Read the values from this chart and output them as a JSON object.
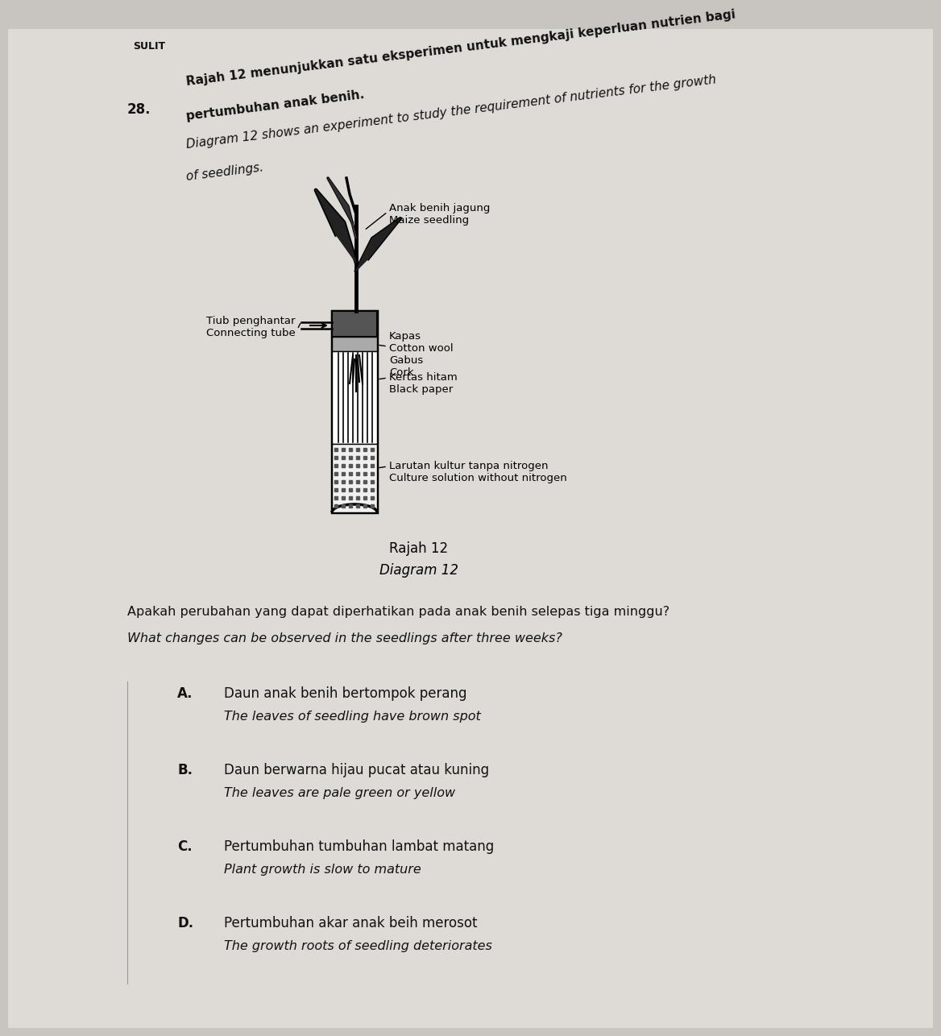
{
  "bg_color": "#c8c4c0",
  "page_bg": "#e8e4e0",
  "header_text": "SULIT",
  "question_number": "28.",
  "malay_q1": "Rajah 12 menunjukkan satu eksperimen untuk mengkaji keperluan nutrien bagi",
  "malay_q2": "pertumbuhan anak benih.",
  "english_q1": "Diagram 12 shows an experiment to study the requirement of nutrients for the growth",
  "english_q2": "of seedlings.",
  "diagram_label_malay": "Rajah 12",
  "diagram_label_english": "Diagram 12",
  "question_malay": "Apakah perubahan yang dapat diperhatikan pada anak benih selepas tiga minggu?",
  "question_english": "What changes can be observed in the seedlings after three weeks?",
  "label_connecting_tube": "Tiub penghantar\nConnecting tube",
  "label_seedling": "Anak benih jagung\nMaize seedling",
  "label_cotton": "Kapas\nCotton wool\nGabus\nCork",
  "label_black_paper": "Kertas hitam\nBlack paper",
  "label_solution": "Larutan kultur tanpa nitrogen\nCulture solution without nitrogen",
  "options": [
    {
      "letter": "A.",
      "malay": "Daun anak benih bertompok perang",
      "english": "The leaves of seedling have brown spot"
    },
    {
      "letter": "B.",
      "malay": "Daun berwarna hijau pucat atau kuning",
      "english": "The leaves are pale green or yellow"
    },
    {
      "letter": "C.",
      "malay": "Pertumbuhan tumbuhan lambat matang",
      "english": "Plant growth is slow to mature"
    },
    {
      "letter": "D.",
      "malay": "Pertumbuhan akar anak beih merosot",
      "english": "The growth roots of seedling deteriorates"
    }
  ]
}
